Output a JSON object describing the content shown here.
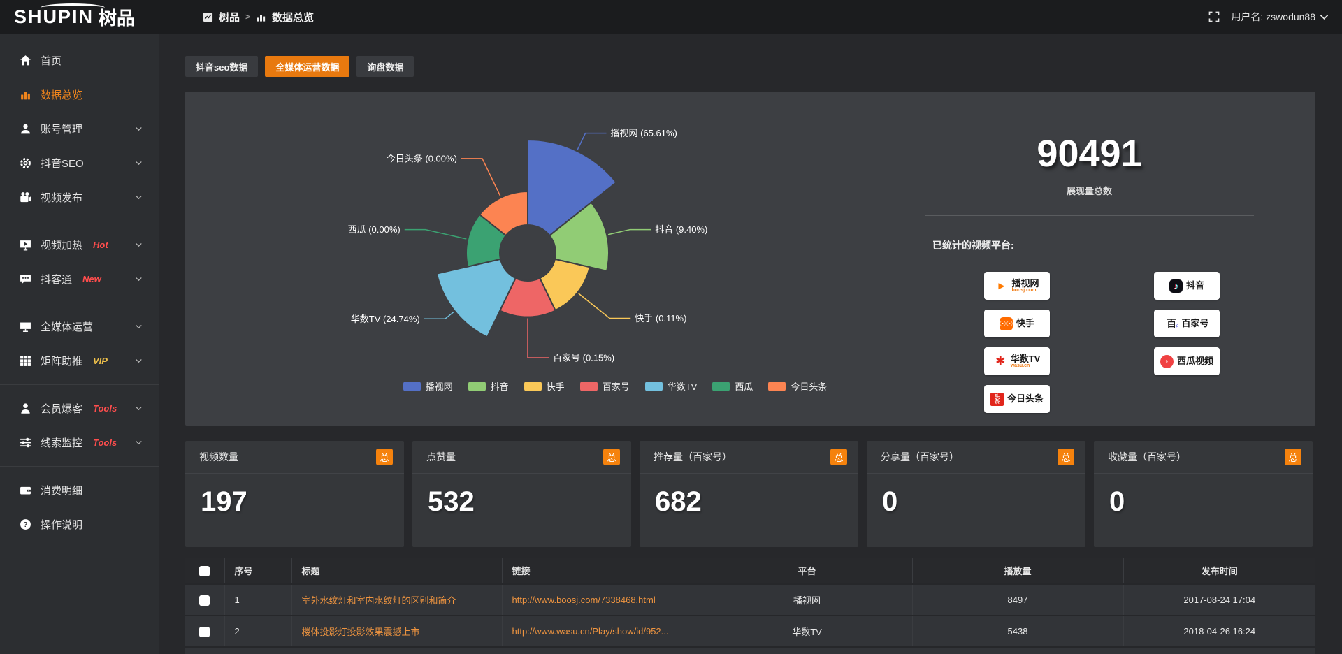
{
  "topbar": {
    "logo_en": "SHUPIN",
    "logo_cn": "树品",
    "breadcrumb": {
      "root": "树品",
      "separator": ">",
      "current": "数据总览"
    },
    "user_label": "用户名: zswodun88"
  },
  "sidebar": {
    "items": [
      {
        "label": "首页",
        "icon": "home"
      },
      {
        "label": "数据总览",
        "icon": "bar-chart",
        "active": true
      },
      {
        "label": "账号管理",
        "icon": "user",
        "chevron": true
      },
      {
        "label": "抖音SEO",
        "icon": "gear",
        "chevron": true
      },
      {
        "label": "视频发布",
        "icon": "video-camera",
        "chevron": true
      },
      {
        "divider": true
      },
      {
        "label": "视频加热",
        "icon": "screen-play",
        "chevron": true,
        "badge": "Hot",
        "badge_color": "#ff4d4d"
      },
      {
        "label": "抖客通",
        "icon": "chat-bubble",
        "chevron": true,
        "badge": "New",
        "badge_color": "#ff4d4d"
      },
      {
        "divider": true
      },
      {
        "label": "全媒体运营",
        "icon": "monitor",
        "chevron": true
      },
      {
        "label": "矩阵助推",
        "icon": "grid",
        "chevron": true,
        "badge": "VIP",
        "badge_color": "#eec04a"
      },
      {
        "divider": true
      },
      {
        "label": "会员爆客",
        "icon": "person",
        "chevron": true,
        "badge": "Tools",
        "badge_color": "#ff4d4d"
      },
      {
        "label": "线索监控",
        "icon": "sliders",
        "chevron": true,
        "badge": "Tools",
        "badge_color": "#ff4d4d"
      },
      {
        "divider": true
      },
      {
        "label": "消费明细",
        "icon": "wallet"
      },
      {
        "label": "操作说明",
        "icon": "question"
      }
    ]
  },
  "tabs": [
    {
      "label": "抖音seo数据"
    },
    {
      "label": "全媒体运营数据",
      "active": true
    },
    {
      "label": "询盘数据"
    }
  ],
  "chart_data": {
    "type": "pie",
    "style": "rose-nightingale",
    "unit": "%",
    "legend_position": "bottom",
    "slices": [
      {
        "name": "播视网",
        "pct": 65.61,
        "color": "#5470c6"
      },
      {
        "name": "抖音",
        "pct": 9.4,
        "color": "#91cc75"
      },
      {
        "name": "快手",
        "pct": 0.11,
        "color": "#fac858"
      },
      {
        "name": "百家号",
        "pct": 0.15,
        "color": "#ee6666"
      },
      {
        "name": "华数TV",
        "pct": 24.74,
        "color": "#73c0de"
      },
      {
        "name": "西瓜",
        "pct": 0.0,
        "color": "#3ba272"
      },
      {
        "name": "今日头条",
        "pct": 0.0,
        "color": "#fc8452"
      }
    ]
  },
  "summary": {
    "total_value": "90491",
    "total_label": "展现量总数",
    "platforms_title": "已统计的视频平台:",
    "platform_columns": [
      [
        {
          "name": "播视网",
          "sub": "boosj.com",
          "icon": "boosj"
        },
        {
          "name": "快手",
          "icon": "kuaishou"
        },
        {
          "name": "华数TV",
          "sub": "wasu.cn",
          "icon": "wasu"
        },
        {
          "name": "今日头条",
          "icon": "toutiao"
        }
      ],
      [
        {
          "name": "抖音",
          "icon": "douyin"
        },
        {
          "name": "百家号",
          "icon": "baijiahao"
        },
        {
          "name": "西瓜视频",
          "icon": "xigua"
        }
      ]
    ]
  },
  "stat_cards": [
    {
      "label": "视频数量",
      "badge": "总",
      "value": "197"
    },
    {
      "label": "点赞量",
      "badge": "总",
      "value": "532"
    },
    {
      "label": "推荐量（百家号）",
      "badge": "总",
      "value": "682"
    },
    {
      "label": "分享量（百家号）",
      "badge": "总",
      "value": "0"
    },
    {
      "label": "收藏量（百家号）",
      "badge": "总",
      "value": "0"
    }
  ],
  "table": {
    "headers": [
      "序号",
      "标题",
      "链接",
      "平台",
      "播放量",
      "发布时间"
    ],
    "rows": [
      {
        "no": "1",
        "title": "室外水纹灯和室内水纹灯的区别和简介",
        "link": "http://www.boosj.com/7338468.html",
        "platform": "播视网",
        "plays": "8497",
        "time": "2017-08-24 17:04"
      },
      {
        "no": "2",
        "title": "楼体投影灯投影效果震撼上市",
        "link": "http://www.wasu.cn/Play/show/id/952...",
        "platform": "华数TV",
        "plays": "5438",
        "time": "2018-04-26 16:24"
      }
    ]
  }
}
